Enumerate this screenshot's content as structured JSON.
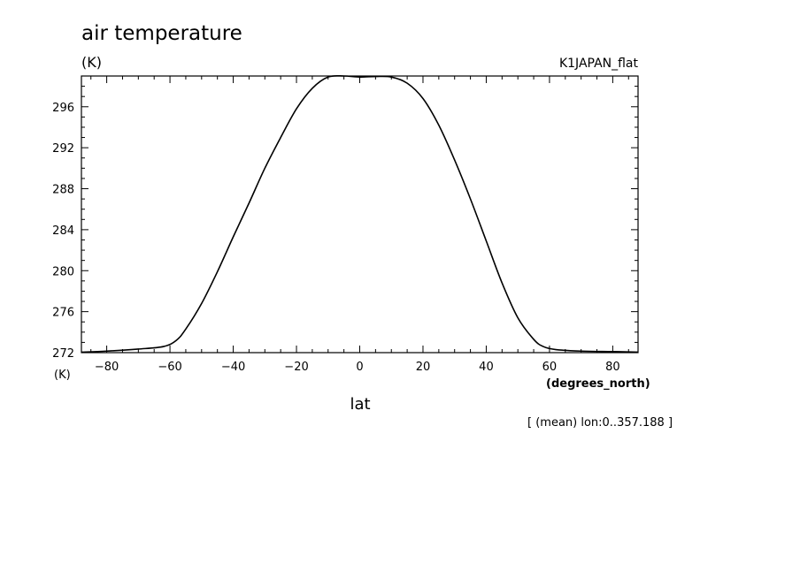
{
  "chart_data": {
    "type": "line",
    "title": "air temperature",
    "units_label": "(K)",
    "dataset_label": "K1JAPAN_flat",
    "xlabel": "lat",
    "xunits": "(degrees_north)",
    "yunits": "(K)",
    "footnote": "[ (mean) lon:0..357.188 ]",
    "xlim": [
      -88,
      88
    ],
    "ylim": [
      272,
      299
    ],
    "x_ticks": [
      -80,
      -60,
      -40,
      -20,
      0,
      20,
      40,
      60,
      80
    ],
    "y_ticks": [
      272,
      276,
      280,
      284,
      288,
      292,
      296
    ],
    "grid": false,
    "series": [
      {
        "x": [
          -88,
          -80,
          -70,
          -62,
          -58,
          -55,
          -50,
          -45,
          -40,
          -35,
          -30,
          -25,
          -20,
          -15,
          -10,
          -5,
          0,
          5,
          10,
          15,
          20,
          25,
          30,
          35,
          40,
          45,
          50,
          55,
          58,
          62,
          70,
          80,
          88
        ],
        "values": [
          272.05,
          272.15,
          272.35,
          272.6,
          273.2,
          274.3,
          276.8,
          279.9,
          283.3,
          286.6,
          290.0,
          293.0,
          295.8,
          297.8,
          298.9,
          299.0,
          298.9,
          298.95,
          298.9,
          298.3,
          296.8,
          294.2,
          290.8,
          287.0,
          282.9,
          278.8,
          275.4,
          273.3,
          272.6,
          272.3,
          272.15,
          272.1,
          272.05
        ]
      }
    ]
  }
}
